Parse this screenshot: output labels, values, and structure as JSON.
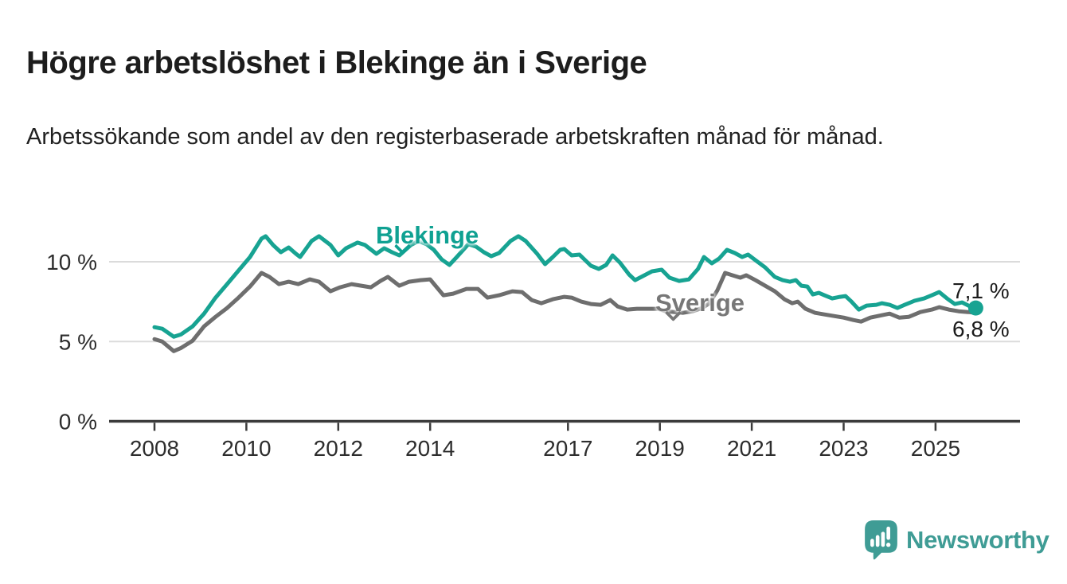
{
  "header": {
    "title": "Högre arbetslöshet i Blekinge än i Sverige",
    "subtitle": "Arbetssökande som andel av den registerbaserade arbetskraften månad för månad."
  },
  "chart_data": {
    "type": "line",
    "title": "Högre arbetslöshet i Blekinge än i Sverige",
    "unit": "%",
    "grid": "horizontal-only",
    "legend_position": "inline-labels-on-lines",
    "x_axis": {
      "label": "",
      "tick_years": [
        "2008",
        "2010",
        "2012",
        "2014",
        "2017",
        "2019",
        "2021",
        "2023",
        "2025"
      ],
      "range": [
        2007.9,
        2026.2
      ]
    },
    "y_axis": {
      "label": "",
      "ticks": [
        {
          "value": 0,
          "label": "0 %"
        },
        {
          "value": 5,
          "label": "5 %"
        },
        {
          "value": 10,
          "label": "10 %"
        }
      ],
      "range": [
        0,
        13.8
      ]
    },
    "series": [
      {
        "name": "Blekinge",
        "color": "#17a392",
        "end_label": "7,1 %",
        "end_value": 7.1,
        "points": [
          [
            2008.0,
            5.9
          ],
          [
            2008.17,
            5.8
          ],
          [
            2008.42,
            5.3
          ],
          [
            2008.58,
            5.45
          ],
          [
            2008.83,
            5.95
          ],
          [
            2009.08,
            6.75
          ],
          [
            2009.33,
            7.75
          ],
          [
            2009.58,
            8.6
          ],
          [
            2009.83,
            9.45
          ],
          [
            2010.08,
            10.3
          ],
          [
            2010.33,
            11.45
          ],
          [
            2010.42,
            11.6
          ],
          [
            2010.58,
            11.05
          ],
          [
            2010.75,
            10.6
          ],
          [
            2010.92,
            10.9
          ],
          [
            2011.08,
            10.5
          ],
          [
            2011.17,
            10.3
          ],
          [
            2011.42,
            11.3
          ],
          [
            2011.58,
            11.6
          ],
          [
            2011.83,
            11.05
          ],
          [
            2012.0,
            10.4
          ],
          [
            2012.17,
            10.85
          ],
          [
            2012.42,
            11.2
          ],
          [
            2012.58,
            11.05
          ],
          [
            2012.83,
            10.5
          ],
          [
            2013.0,
            10.85
          ],
          [
            2013.17,
            10.6
          ],
          [
            2013.33,
            10.4
          ],
          [
            2013.58,
            11.05
          ],
          [
            2013.75,
            11.3
          ],
          [
            2013.92,
            11.1
          ],
          [
            2014.08,
            10.75
          ],
          [
            2014.25,
            10.15
          ],
          [
            2014.42,
            9.8
          ],
          [
            2014.58,
            10.3
          ],
          [
            2014.83,
            11.1
          ],
          [
            2015.0,
            10.95
          ],
          [
            2015.17,
            10.6
          ],
          [
            2015.33,
            10.35
          ],
          [
            2015.5,
            10.55
          ],
          [
            2015.75,
            11.3
          ],
          [
            2015.92,
            11.6
          ],
          [
            2016.08,
            11.3
          ],
          [
            2016.33,
            10.5
          ],
          [
            2016.5,
            9.85
          ],
          [
            2016.67,
            10.3
          ],
          [
            2016.83,
            10.75
          ],
          [
            2016.92,
            10.8
          ],
          [
            2017.08,
            10.4
          ],
          [
            2017.25,
            10.45
          ],
          [
            2017.5,
            9.75
          ],
          [
            2017.67,
            9.55
          ],
          [
            2017.83,
            9.8
          ],
          [
            2017.97,
            10.4
          ],
          [
            2018.13,
            9.95
          ],
          [
            2018.33,
            9.2
          ],
          [
            2018.46,
            8.85
          ],
          [
            2018.63,
            9.1
          ],
          [
            2018.83,
            9.4
          ],
          [
            2019.04,
            9.5
          ],
          [
            2019.21,
            9.0
          ],
          [
            2019.42,
            8.8
          ],
          [
            2019.63,
            8.9
          ],
          [
            2019.83,
            9.55
          ],
          [
            2019.96,
            10.3
          ],
          [
            2020.13,
            9.9
          ],
          [
            2020.29,
            10.2
          ],
          [
            2020.46,
            10.75
          ],
          [
            2020.63,
            10.55
          ],
          [
            2020.79,
            10.3
          ],
          [
            2020.92,
            10.45
          ],
          [
            2021.08,
            10.1
          ],
          [
            2021.29,
            9.65
          ],
          [
            2021.5,
            9.05
          ],
          [
            2021.67,
            8.85
          ],
          [
            2021.83,
            8.75
          ],
          [
            2021.96,
            8.85
          ],
          [
            2022.08,
            8.5
          ],
          [
            2022.21,
            8.45
          ],
          [
            2022.33,
            7.95
          ],
          [
            2022.46,
            8.05
          ],
          [
            2022.58,
            7.9
          ],
          [
            2022.75,
            7.7
          ],
          [
            2022.92,
            7.8
          ],
          [
            2023.04,
            7.85
          ],
          [
            2023.17,
            7.5
          ],
          [
            2023.33,
            7.0
          ],
          [
            2023.5,
            7.25
          ],
          [
            2023.71,
            7.3
          ],
          [
            2023.83,
            7.4
          ],
          [
            2024.0,
            7.3
          ],
          [
            2024.17,
            7.1
          ],
          [
            2024.33,
            7.3
          ],
          [
            2024.54,
            7.55
          ],
          [
            2024.75,
            7.7
          ],
          [
            2024.92,
            7.9
          ],
          [
            2025.08,
            8.1
          ],
          [
            2025.25,
            7.7
          ],
          [
            2025.42,
            7.35
          ],
          [
            2025.58,
            7.45
          ],
          [
            2025.75,
            7.2
          ],
          [
            2025.875,
            7.1
          ]
        ]
      },
      {
        "name": "Sverige",
        "color": "#6e6e6e",
        "end_label": "6,8 %",
        "end_value": 6.8,
        "points": [
          [
            2008.0,
            5.15
          ],
          [
            2008.17,
            5.0
          ],
          [
            2008.42,
            4.4
          ],
          [
            2008.58,
            4.6
          ],
          [
            2008.83,
            5.05
          ],
          [
            2009.08,
            5.95
          ],
          [
            2009.33,
            6.55
          ],
          [
            2009.58,
            7.1
          ],
          [
            2009.83,
            7.75
          ],
          [
            2010.08,
            8.45
          ],
          [
            2010.33,
            9.3
          ],
          [
            2010.5,
            9.05
          ],
          [
            2010.71,
            8.6
          ],
          [
            2010.92,
            8.75
          ],
          [
            2011.13,
            8.6
          ],
          [
            2011.38,
            8.9
          ],
          [
            2011.58,
            8.75
          ],
          [
            2011.83,
            8.15
          ],
          [
            2012.04,
            8.4
          ],
          [
            2012.29,
            8.6
          ],
          [
            2012.5,
            8.5
          ],
          [
            2012.71,
            8.4
          ],
          [
            2012.92,
            8.8
          ],
          [
            2013.08,
            9.05
          ],
          [
            2013.33,
            8.5
          ],
          [
            2013.54,
            8.75
          ],
          [
            2013.79,
            8.85
          ],
          [
            2014.0,
            8.9
          ],
          [
            2014.29,
            7.9
          ],
          [
            2014.5,
            8.0
          ],
          [
            2014.79,
            8.3
          ],
          [
            2015.04,
            8.3
          ],
          [
            2015.25,
            7.75
          ],
          [
            2015.5,
            7.9
          ],
          [
            2015.79,
            8.15
          ],
          [
            2016.0,
            8.1
          ],
          [
            2016.21,
            7.6
          ],
          [
            2016.42,
            7.4
          ],
          [
            2016.67,
            7.65
          ],
          [
            2016.92,
            7.8
          ],
          [
            2017.08,
            7.75
          ],
          [
            2017.29,
            7.5
          ],
          [
            2017.5,
            7.35
          ],
          [
            2017.71,
            7.3
          ],
          [
            2017.92,
            7.6
          ],
          [
            2018.08,
            7.2
          ],
          [
            2018.29,
            7.0
          ],
          [
            2018.5,
            7.05
          ],
          [
            2018.75,
            7.05
          ],
          [
            2018.96,
            7.05
          ],
          [
            2019.13,
            6.9
          ],
          [
            2019.33,
            6.85
          ],
          [
            2019.5,
            6.8
          ],
          [
            2019.71,
            6.9
          ],
          [
            2019.92,
            7.1
          ],
          [
            2020.08,
            7.4
          ],
          [
            2020.25,
            8.2
          ],
          [
            2020.42,
            9.3
          ],
          [
            2020.58,
            9.15
          ],
          [
            2020.75,
            9.0
          ],
          [
            2020.88,
            9.15
          ],
          [
            2021.08,
            8.85
          ],
          [
            2021.29,
            8.5
          ],
          [
            2021.5,
            8.15
          ],
          [
            2021.71,
            7.65
          ],
          [
            2021.88,
            7.4
          ],
          [
            2022.0,
            7.5
          ],
          [
            2022.17,
            7.05
          ],
          [
            2022.38,
            6.8
          ],
          [
            2022.58,
            6.7
          ],
          [
            2022.79,
            6.6
          ],
          [
            2023.0,
            6.5
          ],
          [
            2023.21,
            6.35
          ],
          [
            2023.38,
            6.25
          ],
          [
            2023.58,
            6.5
          ],
          [
            2023.83,
            6.65
          ],
          [
            2024.0,
            6.75
          ],
          [
            2024.21,
            6.5
          ],
          [
            2024.42,
            6.55
          ],
          [
            2024.67,
            6.85
          ],
          [
            2024.92,
            7.0
          ],
          [
            2025.08,
            7.15
          ],
          [
            2025.29,
            7.0
          ],
          [
            2025.5,
            6.9
          ],
          [
            2025.71,
            6.85
          ],
          [
            2025.875,
            6.8
          ]
        ]
      }
    ]
  },
  "annotations": {
    "blekinge_label": "Blekinge",
    "sverige_label": "Sverige",
    "end_label_blekinge": "7,1 %",
    "end_label_sverige": "6,8 %"
  },
  "footer": {
    "brand": "Newsworthy"
  },
  "colors": {
    "accent_teal": "#17a392",
    "line_gray": "#6e6e6e",
    "logo_teal": "#3f9c95",
    "grid": "#dbdbdb",
    "axis": "#3b3b3b",
    "text_dark": "#1d1d1d",
    "axis_text": "#2d2d2d"
  }
}
